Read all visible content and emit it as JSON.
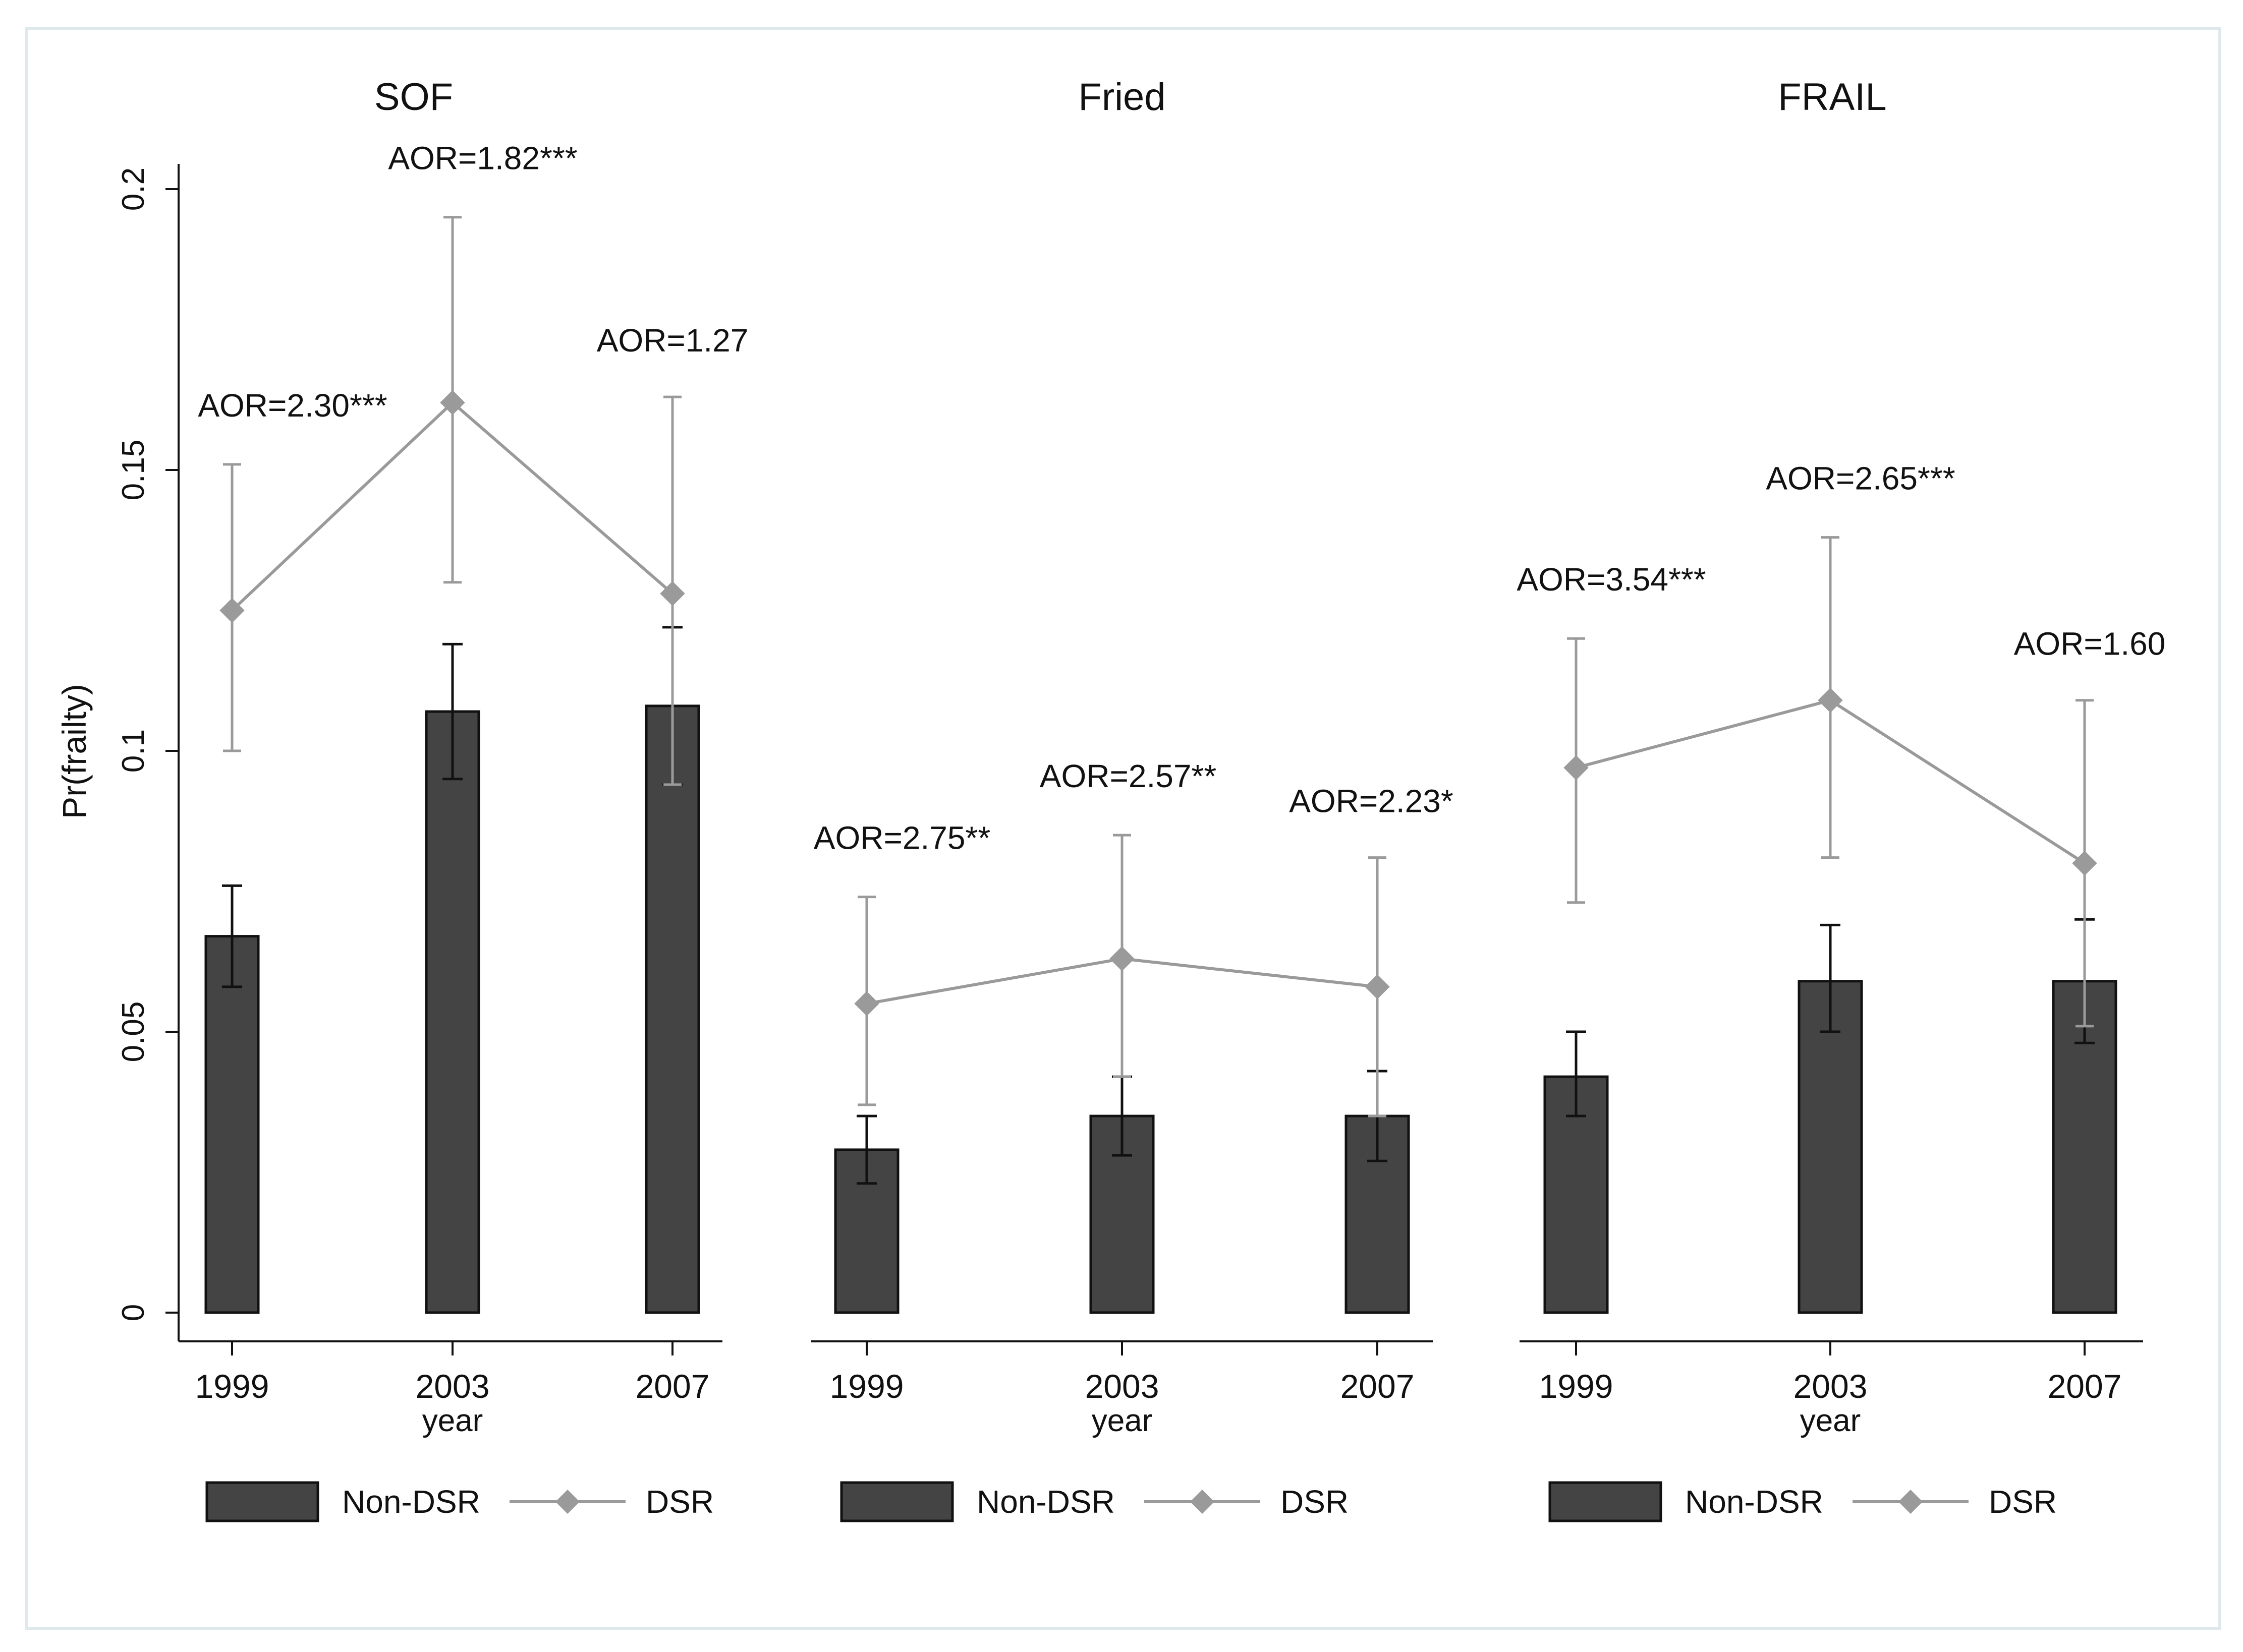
{
  "figure": {
    "y_axis_label": "Pr(frailty)",
    "x_axis_label": "year",
    "y_ticks": [
      0,
      0.05,
      0.1,
      0.15,
      0.2
    ],
    "y_tick_labels": [
      "0",
      "0.05",
      "0.1",
      "0.15",
      "0.2"
    ]
  },
  "colors": {
    "bar_fill": "#444444",
    "bar_stroke": "#111111",
    "bar_error": "#111111",
    "line": "#9a9a9a",
    "frame": "#dfe8ec"
  },
  "chart_data": [
    {
      "type": "bar",
      "title": "SOF",
      "xlabel": "year",
      "ylabel": "Pr(frailty)",
      "ylim": [
        0,
        0.2
      ],
      "categories": [
        "1999",
        "2003",
        "2007"
      ],
      "series": [
        {
          "name": "Non-DSR",
          "kind": "bar",
          "values": [
            0.067,
            0.107,
            0.108
          ],
          "ci_low": [
            0.058,
            0.095,
            0.094
          ],
          "ci_high": [
            0.076,
            0.119,
            0.122
          ]
        },
        {
          "name": "DSR",
          "kind": "line",
          "values": [
            0.125,
            0.162,
            0.128
          ],
          "ci_low": [
            0.1,
            0.13,
            0.094
          ],
          "ci_high": [
            0.151,
            0.195,
            0.163
          ]
        }
      ],
      "annotations": [
        "AOR=2.30***",
        "AOR=1.82***",
        "AOR=1.27"
      ],
      "legend": [
        "Non-DSR",
        "DSR"
      ]
    },
    {
      "type": "bar",
      "title": "Fried",
      "xlabel": "year",
      "ylabel": "Pr(frailty)",
      "ylim": [
        0,
        0.2
      ],
      "categories": [
        "1999",
        "2003",
        "2007"
      ],
      "series": [
        {
          "name": "Non-DSR",
          "kind": "bar",
          "values": [
            0.029,
            0.035,
            0.035
          ],
          "ci_low": [
            0.023,
            0.028,
            0.027
          ],
          "ci_high": [
            0.035,
            0.042,
            0.043
          ]
        },
        {
          "name": "DSR",
          "kind": "line",
          "values": [
            0.055,
            0.063,
            0.058
          ],
          "ci_low": [
            0.037,
            0.042,
            0.035
          ],
          "ci_high": [
            0.074,
            0.085,
            0.081
          ]
        }
      ],
      "annotations": [
        "AOR=2.75**",
        "AOR=2.57**",
        "AOR=2.23*"
      ],
      "legend": [
        "Non-DSR",
        "DSR"
      ]
    },
    {
      "type": "bar",
      "title": "FRAIL",
      "xlabel": "year",
      "ylabel": "Pr(frailty)",
      "ylim": [
        0,
        0.2
      ],
      "categories": [
        "1999",
        "2003",
        "2007"
      ],
      "series": [
        {
          "name": "Non-DSR",
          "kind": "bar",
          "values": [
            0.042,
            0.059,
            0.059
          ],
          "ci_low": [
            0.035,
            0.05,
            0.048
          ],
          "ci_high": [
            0.05,
            0.069,
            0.07
          ]
        },
        {
          "name": "DSR",
          "kind": "line",
          "values": [
            0.097,
            0.109,
            0.08
          ],
          "ci_low": [
            0.073,
            0.081,
            0.051
          ],
          "ci_high": [
            0.12,
            0.138,
            0.109
          ]
        }
      ],
      "annotations": [
        "AOR=3.54***",
        "AOR=2.65***",
        "AOR=1.60"
      ],
      "legend": [
        "Non-DSR",
        "DSR"
      ]
    }
  ]
}
